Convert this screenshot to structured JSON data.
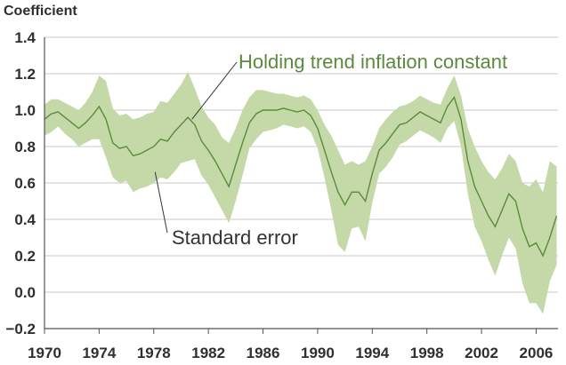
{
  "chart_data": {
    "type": "area",
    "ylabel": "Coefficient",
    "ylim": [
      -0.2,
      1.4
    ],
    "yticks": [
      "1.4",
      "1.2",
      "1.0",
      "0.8",
      "0.6",
      "0.4",
      "0.2",
      "0.0",
      "−0.2"
    ],
    "ytick_values": [
      1.4,
      1.2,
      1.0,
      0.8,
      0.6,
      0.4,
      0.2,
      0.0,
      -0.2
    ],
    "xlim": [
      1970,
      2007.6
    ],
    "xticks": [
      "1970",
      "1974",
      "1978",
      "1982",
      "1986",
      "1990",
      "1994",
      "1998",
      "2002",
      "2006"
    ],
    "xtick_values": [
      1970,
      1974,
      1978,
      1982,
      1986,
      1990,
      1994,
      1998,
      2002,
      2006
    ],
    "grid": "horizontal",
    "colors": {
      "line": "#5b8a3c",
      "band": "#c5d9a8",
      "grid": "#c8c8c8",
      "axis": "#555555",
      "text": "#2f2f2f"
    },
    "series": [
      {
        "name": "Holding trend inflation constant",
        "x": [
          1970.0,
          1970.5,
          1971.0,
          1971.5,
          1972.0,
          1972.5,
          1973.0,
          1973.5,
          1974.0,
          1974.5,
          1975.0,
          1975.5,
          1976.0,
          1976.5,
          1977.0,
          1977.5,
          1978.0,
          1978.5,
          1979.0,
          1979.5,
          1980.0,
          1980.5,
          1981.0,
          1981.5,
          1982.0,
          1982.5,
          1983.0,
          1983.5,
          1984.0,
          1984.5,
          1985.0,
          1985.5,
          1986.0,
          1986.5,
          1987.0,
          1987.5,
          1988.0,
          1988.5,
          1989.0,
          1989.5,
          1990.0,
          1990.5,
          1991.0,
          1991.5,
          1992.0,
          1992.5,
          1993.0,
          1993.5,
          1994.0,
          1994.5,
          1995.0,
          1995.5,
          1996.0,
          1996.5,
          1997.0,
          1997.5,
          1998.0,
          1998.5,
          1999.0,
          1999.5,
          2000.0,
          2000.5,
          2001.0,
          2001.5,
          2002.0,
          2002.5,
          2003.0,
          2003.5,
          2004.0,
          2004.5,
          2005.0,
          2005.5,
          2006.0,
          2006.5,
          2007.0,
          2007.5
        ],
        "values": [
          0.95,
          0.98,
          0.99,
          0.96,
          0.93,
          0.9,
          0.93,
          0.97,
          1.02,
          0.95,
          0.82,
          0.79,
          0.8,
          0.75,
          0.76,
          0.78,
          0.8,
          0.84,
          0.83,
          0.88,
          0.92,
          0.96,
          0.92,
          0.83,
          0.78,
          0.72,
          0.65,
          0.58,
          0.7,
          0.82,
          0.93,
          0.98,
          1.0,
          1.0,
          1.0,
          1.01,
          1.0,
          0.99,
          1.0,
          0.97,
          0.9,
          0.78,
          0.66,
          0.55,
          0.48,
          0.55,
          0.55,
          0.5,
          0.65,
          0.78,
          0.82,
          0.87,
          0.92,
          0.93,
          0.96,
          0.99,
          0.97,
          0.95,
          0.93,
          1.02,
          1.07,
          0.95,
          0.72,
          0.58,
          0.5,
          0.42,
          0.36,
          0.45,
          0.54,
          0.5,
          0.35,
          0.25,
          0.27,
          0.2,
          0.3,
          0.42
        ]
      },
      {
        "name": "Standard error",
        "x": [
          1970.0,
          1970.5,
          1971.0,
          1971.5,
          1972.0,
          1972.5,
          1973.0,
          1973.5,
          1974.0,
          1974.5,
          1975.0,
          1975.5,
          1976.0,
          1976.5,
          1977.0,
          1977.5,
          1978.0,
          1978.5,
          1979.0,
          1979.5,
          1980.0,
          1980.5,
          1981.0,
          1981.5,
          1982.0,
          1982.5,
          1983.0,
          1983.5,
          1984.0,
          1984.5,
          1985.0,
          1985.5,
          1986.0,
          1986.5,
          1987.0,
          1987.5,
          1988.0,
          1988.5,
          1989.0,
          1989.5,
          1990.0,
          1990.5,
          1991.0,
          1991.5,
          1992.0,
          1992.5,
          1993.0,
          1993.5,
          1994.0,
          1994.5,
          1995.0,
          1995.5,
          1996.0,
          1996.5,
          1997.0,
          1997.5,
          1998.0,
          1998.5,
          1999.0,
          1999.5,
          2000.0,
          2000.5,
          2001.0,
          2001.5,
          2002.0,
          2002.5,
          2003.0,
          2003.5,
          2004.0,
          2004.5,
          2005.0,
          2005.5,
          2006.0,
          2006.5,
          2007.0,
          2007.5
        ],
        "upper": [
          1.03,
          1.06,
          1.06,
          1.04,
          1.02,
          1.0,
          1.04,
          1.1,
          1.19,
          1.16,
          1.01,
          0.97,
          0.98,
          0.95,
          0.96,
          0.98,
          0.99,
          1.05,
          1.04,
          1.09,
          1.14,
          1.21,
          1.12,
          1.02,
          0.96,
          0.92,
          0.85,
          0.82,
          0.9,
          1.0,
          1.07,
          1.11,
          1.11,
          1.1,
          1.09,
          1.09,
          1.08,
          1.07,
          1.08,
          1.06,
          1.0,
          0.92,
          0.86,
          0.78,
          0.7,
          0.72,
          0.7,
          0.72,
          0.8,
          0.9,
          0.95,
          0.99,
          1.02,
          1.03,
          1.05,
          1.08,
          1.06,
          1.04,
          1.03,
          1.12,
          1.19,
          1.08,
          0.9,
          0.8,
          0.72,
          0.66,
          0.62,
          0.68,
          0.76,
          0.72,
          0.6,
          0.58,
          0.62,
          0.55,
          0.72,
          0.69
        ],
        "lower": [
          0.86,
          0.88,
          0.91,
          0.87,
          0.84,
          0.8,
          0.82,
          0.84,
          0.84,
          0.74,
          0.63,
          0.6,
          0.61,
          0.55,
          0.57,
          0.58,
          0.6,
          0.63,
          0.62,
          0.66,
          0.71,
          0.72,
          0.73,
          0.64,
          0.59,
          0.52,
          0.45,
          0.38,
          0.5,
          0.64,
          0.79,
          0.84,
          0.88,
          0.89,
          0.9,
          0.92,
          0.91,
          0.9,
          0.91,
          0.88,
          0.79,
          0.63,
          0.45,
          0.26,
          0.22,
          0.35,
          0.36,
          0.28,
          0.49,
          0.65,
          0.69,
          0.74,
          0.81,
          0.83,
          0.86,
          0.89,
          0.87,
          0.85,
          0.82,
          0.9,
          0.94,
          0.8,
          0.54,
          0.36,
          0.28,
          0.18,
          0.09,
          0.2,
          0.3,
          0.24,
          0.05,
          -0.06,
          -0.06,
          -0.12,
          0.06,
          0.15
        ]
      }
    ],
    "annotations": [
      {
        "text": "Holding trend inflation constant",
        "target_x": 1980.8,
        "target_y": 0.95
      },
      {
        "text": "Standard error",
        "target_x": 1978.1,
        "target_y": 0.66
      }
    ]
  }
}
